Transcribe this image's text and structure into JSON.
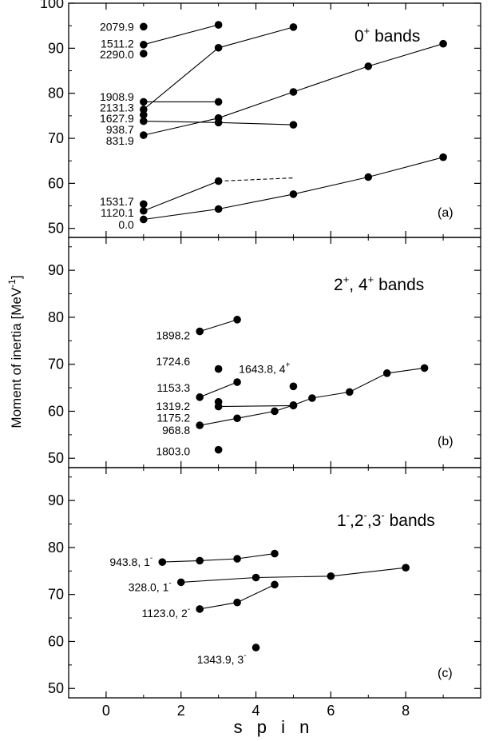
{
  "chart_data": {
    "type": "scatter",
    "xlabel": "s p i n",
    "ylabel": "Moment of inertia [MeV",
    "ylabel_sup": "-1",
    "ylabel_close": "]",
    "xlim": [
      -1,
      10
    ],
    "x_ticks": [
      0,
      2,
      4,
      6,
      8
    ],
    "x_tick_labels": [
      "0",
      "2",
      "4",
      "6",
      "8"
    ],
    "panels": [
      {
        "title_main": "0",
        "title_sup": "+",
        "title_rest": " bands",
        "letter": "(a)",
        "ylim": [
          48,
          100
        ],
        "y_ticks": [
          50,
          60,
          70,
          80,
          90,
          100
        ],
        "y_tick_labels": [
          "50",
          "60",
          "70",
          "80",
          "90",
          "100"
        ],
        "series": [
          {
            "x": [
              1
            ],
            "y": [
              94.8
            ]
          },
          {
            "x": [
              1,
              3
            ],
            "y": [
              90.8,
              95.2
            ]
          },
          {
            "x": [
              1
            ],
            "y": [
              88.8
            ]
          },
          {
            "x": [
              1,
              3
            ],
            "y": [
              78.1,
              78.1
            ]
          },
          {
            "x": [
              1,
              3,
              5
            ],
            "y": [
              76.4,
              90.1,
              94.7
            ]
          },
          {
            "x": [
              1,
              3,
              5
            ],
            "y": [
              73.8,
              73.5,
              73.0
            ]
          },
          {
            "x": [
              1,
              3,
              5,
              7,
              9
            ],
            "y": [
              70.7,
              74.5,
              80.3,
              86.0,
              91.0
            ]
          },
          {
            "x": [
              1
            ],
            "y": [
              75.2
            ]
          },
          {
            "x": [
              1
            ],
            "y": [
              55.4
            ]
          },
          {
            "x": [
              1,
              3
            ],
            "y": [
              53.9,
              60.5
            ]
          },
          {
            "x": [
              3,
              5
            ],
            "y": [
              60.5,
              61.2
            ],
            "dashed": true
          },
          {
            "x": [
              1,
              3,
              5,
              7,
              9
            ],
            "y": [
              52.0,
              54.3,
              57.6,
              61.4,
              65.8
            ]
          }
        ],
        "labels": [
          {
            "text": "2079.9",
            "x": 1,
            "y": 94.8
          },
          {
            "text": "1511.2",
            "x": 1,
            "y": 91.0
          },
          {
            "text": "2290.0",
            "x": 1,
            "y": 88.6
          },
          {
            "text": "1908.9",
            "x": 1,
            "y": 79.2
          },
          {
            "text": "2131.3",
            "x": 1,
            "y": 76.8
          },
          {
            "text": "1627.9",
            "x": 1,
            "y": 74.4
          },
          {
            "text": "938.7",
            "x": 1,
            "y": 72.0
          },
          {
            "text": "831.9",
            "x": 1,
            "y": 69.5
          },
          {
            "text": "1531.7",
            "x": 1,
            "y": 56.0
          },
          {
            "text": "1120.1",
            "x": 1,
            "y": 53.5
          },
          {
            "text": "0.0",
            "x": 1,
            "y": 50.8
          }
        ]
      },
      {
        "title_main": "2",
        "title_sup": "+",
        "title_mid": ", 4",
        "title_sup2": "+",
        "title_rest": " bands",
        "letter": "(b)",
        "ylim": [
          48,
          97
        ],
        "y_ticks": [
          50,
          60,
          70,
          80,
          90
        ],
        "y_tick_labels": [
          "50",
          "60",
          "70",
          "80",
          "90"
        ],
        "series": [
          {
            "x": [
              2.5,
              3.5
            ],
            "y": [
              77.0,
              79.5
            ]
          },
          {
            "x": [
              3
            ],
            "y": [
              69.0
            ]
          },
          {
            "x": [
              5
            ],
            "y": [
              65.3
            ]
          },
          {
            "x": [
              2.5,
              3.5
            ],
            "y": [
              63.0,
              66.2
            ]
          },
          {
            "x": [
              3
            ],
            "y": [
              62.0
            ]
          },
          {
            "x": [
              3,
              5
            ],
            "y": [
              61.0,
              61.2
            ]
          },
          {
            "x": [
              2.5,
              3.5,
              4.5,
              5,
              5.5,
              6.5,
              7.5,
              8.5
            ],
            "y": [
              57.0,
              58.5,
              60.0,
              61.3,
              62.8,
              64.1,
              68.1,
              69.2
            ]
          },
          {
            "x": [
              3
            ],
            "y": [
              51.8
            ]
          }
        ],
        "labels": [
          {
            "text": "1898.2",
            "x": 2.5,
            "y": 76.2
          },
          {
            "text": "1724.6",
            "x": 2.5,
            "y": 70.6
          },
          {
            "text": "1643.8, 4",
            "sup": "+",
            "x": 3.8,
            "y": 69.0
          },
          {
            "text": "1153.3",
            "x": 2.5,
            "y": 65.0
          },
          {
            "text": "1319.2",
            "x": 2.5,
            "y": 61.1
          },
          {
            "text": "1175.2",
            "x": 2.5,
            "y": 58.6
          },
          {
            "text": "968.8",
            "x": 2.5,
            "y": 56.0
          },
          {
            "text": "1803.0",
            "x": 2.5,
            "y": 51.5
          }
        ]
      },
      {
        "title_main": "1",
        "title_sup": "-",
        "title_mid": ",2",
        "title_sup2": "-",
        "title_mid2": ",3",
        "title_sup3": "-",
        "title_rest": " bands",
        "letter": "(c)",
        "ylim": [
          48,
          97
        ],
        "y_ticks": [
          50,
          60,
          70,
          80,
          90
        ],
        "y_tick_labels": [
          "50",
          "60",
          "70",
          "80",
          "90"
        ],
        "series": [
          {
            "x": [
              1.5,
              2.5,
              3.5,
              4.5
            ],
            "y": [
              76.9,
              77.2,
              77.6,
              78.7
            ]
          },
          {
            "x": [
              2,
              4,
              6,
              8
            ],
            "y": [
              72.6,
              73.6,
              73.9,
              75.7
            ]
          },
          {
            "x": [
              2.5,
              3.5,
              4.5
            ],
            "y": [
              66.9,
              68.3,
              72.1
            ]
          },
          {
            "x": [
              4
            ],
            "y": [
              58.7
            ]
          }
        ],
        "labels": [
          {
            "text": "943.8, 1",
            "sup": "-",
            "x": 1.5,
            "y": 76.9
          },
          {
            "text": "328.0, 1",
            "sup": "-",
            "x": 2.0,
            "y": 71.6
          },
          {
            "text": "1123.0, 2",
            "sup": "-",
            "x": 2.5,
            "y": 66.0
          },
          {
            "text": "1343.9, 3",
            "sup": "-",
            "x": 4.0,
            "y": 56.2
          }
        ]
      }
    ]
  }
}
